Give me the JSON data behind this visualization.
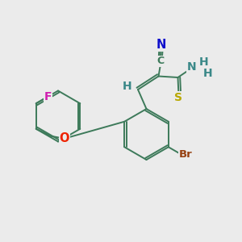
{
  "background_color": "#ebebeb",
  "bond_color": "#3d7a5a",
  "atom_colors": {
    "F": "#d020b0",
    "O": "#ee2200",
    "Br": "#964010",
    "N": "#1010cc",
    "S": "#b8a800",
    "H": "#3a8888",
    "C": "#3d7a5a"
  },
  "figsize": [
    3.0,
    3.0
  ],
  "dpi": 100
}
